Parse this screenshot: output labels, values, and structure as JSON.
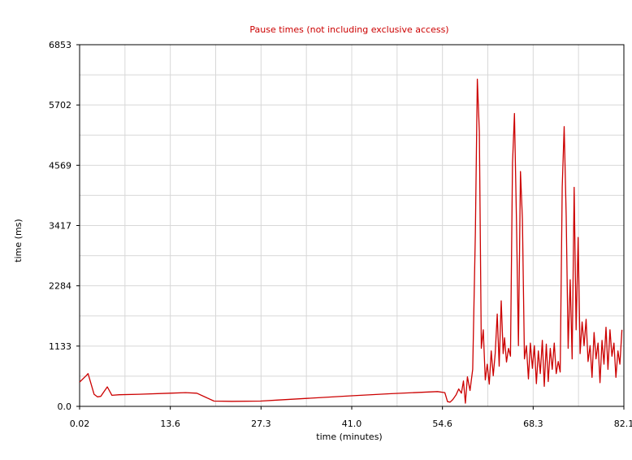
{
  "chart_data": {
    "type": "line",
    "title": "Pause times (not including exclusive access)",
    "xlabel": "time (minutes)",
    "ylabel": "time (ms)",
    "xlim": [
      0.02,
      82.1
    ],
    "ylim": [
      0.0,
      6853
    ],
    "x_ticks": [
      "0.02",
      "13.6",
      "27.3",
      "41.0",
      "54.6",
      "68.3",
      "82.1"
    ],
    "y_ticks": [
      "0.0",
      "1133",
      "2284",
      "3417",
      "4569",
      "5702",
      "6853"
    ],
    "grid": true,
    "colors": {
      "line": "#cc0000",
      "grid": "#d8d8d8",
      "axis": "#000000",
      "title": "#cc0000"
    },
    "series": [
      {
        "points": [
          [
            0.02,
            460
          ],
          [
            1.0,
            580
          ],
          [
            1.3,
            620
          ],
          [
            2.2,
            230
          ],
          [
            2.7,
            180
          ],
          [
            3.2,
            190
          ],
          [
            4.2,
            370
          ],
          [
            4.9,
            210
          ],
          [
            6.0,
            220
          ],
          [
            9.0,
            230
          ],
          [
            13.6,
            250
          ],
          [
            16.0,
            260
          ],
          [
            17.7,
            250
          ],
          [
            20.3,
            100
          ],
          [
            23.0,
            95
          ],
          [
            27.3,
            100
          ],
          [
            30.0,
            120
          ],
          [
            34.0,
            150
          ],
          [
            41.0,
            200
          ],
          [
            47.0,
            240
          ],
          [
            54.0,
            280
          ],
          [
            55.1,
            260
          ],
          [
            55.5,
            90
          ],
          [
            55.9,
            80
          ],
          [
            56.3,
            130
          ],
          [
            56.8,
            220
          ],
          [
            57.2,
            330
          ],
          [
            57.6,
            250
          ],
          [
            57.9,
            480
          ],
          [
            58.2,
            60
          ],
          [
            58.5,
            560
          ],
          [
            58.9,
            300
          ],
          [
            59.3,
            700
          ],
          [
            59.7,
            3300
          ],
          [
            60.0,
            6200
          ],
          [
            60.3,
            5200
          ],
          [
            60.6,
            1100
          ],
          [
            60.9,
            1450
          ],
          [
            61.2,
            500
          ],
          [
            61.5,
            800
          ],
          [
            61.8,
            420
          ],
          [
            62.1,
            1050
          ],
          [
            62.4,
            580
          ],
          [
            62.7,
            1000
          ],
          [
            63.0,
            1750
          ],
          [
            63.3,
            760
          ],
          [
            63.6,
            2000
          ],
          [
            63.9,
            1000
          ],
          [
            64.1,
            1300
          ],
          [
            64.4,
            840
          ],
          [
            64.7,
            1100
          ],
          [
            65.0,
            950
          ],
          [
            65.3,
            4600
          ],
          [
            65.6,
            5550
          ],
          [
            65.9,
            3500
          ],
          [
            66.2,
            1150
          ],
          [
            66.5,
            4450
          ],
          [
            66.8,
            3550
          ],
          [
            67.1,
            900
          ],
          [
            67.4,
            1150
          ],
          [
            67.7,
            520
          ],
          [
            68.0,
            1200
          ],
          [
            68.3,
            720
          ],
          [
            68.6,
            1150
          ],
          [
            68.9,
            430
          ],
          [
            69.2,
            1050
          ],
          [
            69.5,
            620
          ],
          [
            69.8,
            1250
          ],
          [
            70.1,
            380
          ],
          [
            70.4,
            1180
          ],
          [
            70.7,
            470
          ],
          [
            71.0,
            1100
          ],
          [
            71.3,
            700
          ],
          [
            71.6,
            1200
          ],
          [
            71.9,
            620
          ],
          [
            72.2,
            850
          ],
          [
            72.5,
            650
          ],
          [
            72.8,
            4150
          ],
          [
            73.1,
            5300
          ],
          [
            73.4,
            3600
          ],
          [
            73.7,
            1100
          ],
          [
            74.0,
            2400
          ],
          [
            74.3,
            900
          ],
          [
            74.6,
            4150
          ],
          [
            74.9,
            1450
          ],
          [
            75.2,
            3200
          ],
          [
            75.5,
            1000
          ],
          [
            75.8,
            1600
          ],
          [
            76.1,
            1150
          ],
          [
            76.4,
            1650
          ],
          [
            76.7,
            850
          ],
          [
            77.0,
            1150
          ],
          [
            77.3,
            550
          ],
          [
            77.6,
            1400
          ],
          [
            77.9,
            900
          ],
          [
            78.2,
            1200
          ],
          [
            78.5,
            450
          ],
          [
            78.8,
            1250
          ],
          [
            79.1,
            800
          ],
          [
            79.4,
            1500
          ],
          [
            79.7,
            700
          ],
          [
            80.0,
            1450
          ],
          [
            80.3,
            950
          ],
          [
            80.6,
            1200
          ],
          [
            80.9,
            550
          ],
          [
            81.2,
            1050
          ],
          [
            81.5,
            800
          ],
          [
            81.8,
            1450
          ]
        ]
      }
    ]
  }
}
